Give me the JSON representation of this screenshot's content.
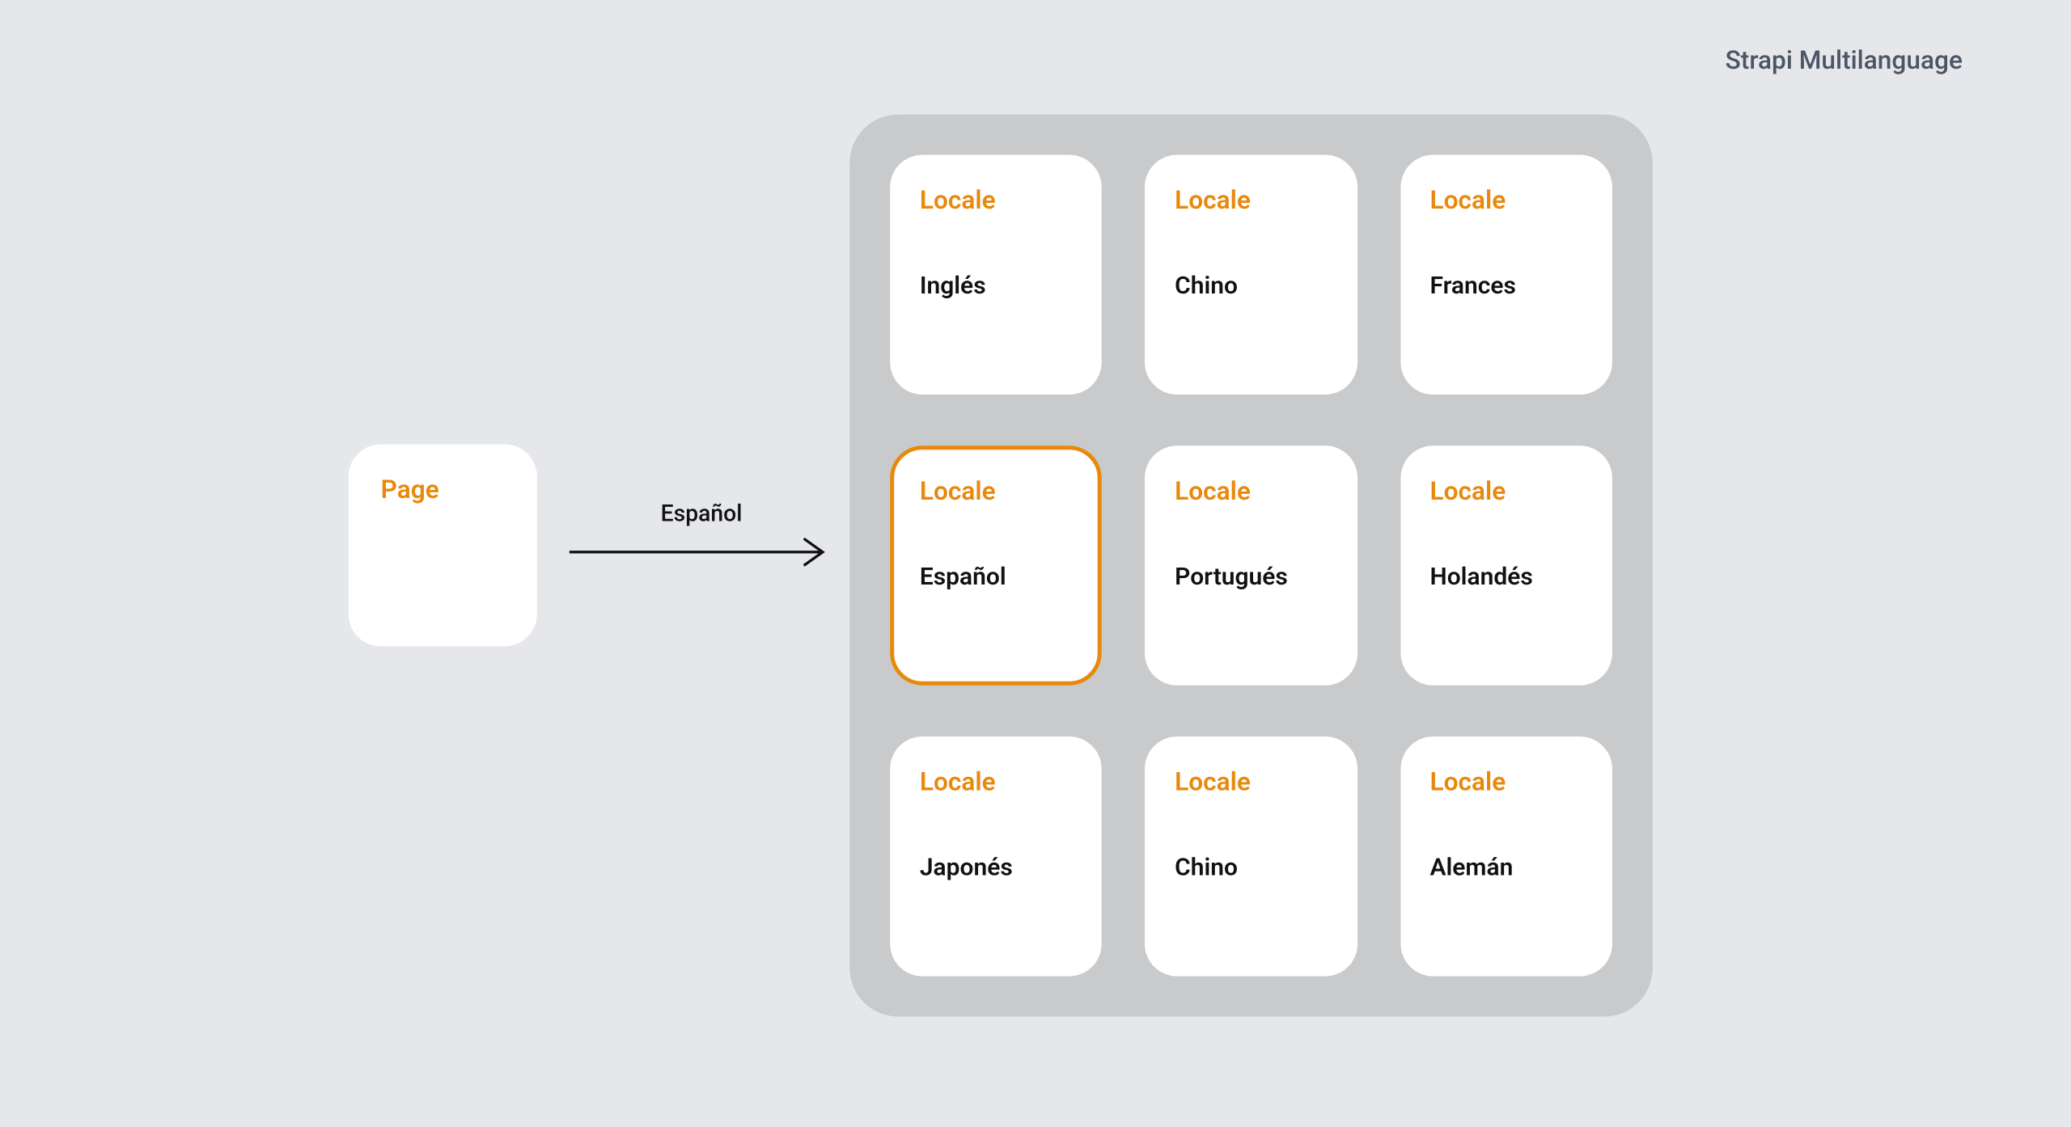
{
  "diagram": {
    "type": "infographic",
    "title": "Strapi Multilanguage",
    "background_color": "#e5e7eb",
    "accent_color": "#e8890c",
    "text_color": "#111111",
    "title_color": "#4b5563",
    "container_bg": "#c9cacc",
    "card_bg": "#ffffff",
    "card_border_radius": 24,
    "container_border_radius": 36,
    "arrow_color": "#111111",
    "title_fontsize": 19,
    "label_fontsize": 19,
    "value_fontsize": 18,
    "page": {
      "label": "Page"
    },
    "arrow": {
      "label": "Español"
    },
    "locale_label": "Locale",
    "locales": [
      {
        "name": "Inglés",
        "selected": false
      },
      {
        "name": "Chino",
        "selected": false
      },
      {
        "name": "Frances",
        "selected": false
      },
      {
        "name": "Español",
        "selected": true
      },
      {
        "name": "Portugués",
        "selected": false
      },
      {
        "name": "Holandés",
        "selected": false
      },
      {
        "name": "Japonés",
        "selected": false
      },
      {
        "name": "Chino",
        "selected": false
      },
      {
        "name": "Alemán",
        "selected": false
      }
    ]
  }
}
